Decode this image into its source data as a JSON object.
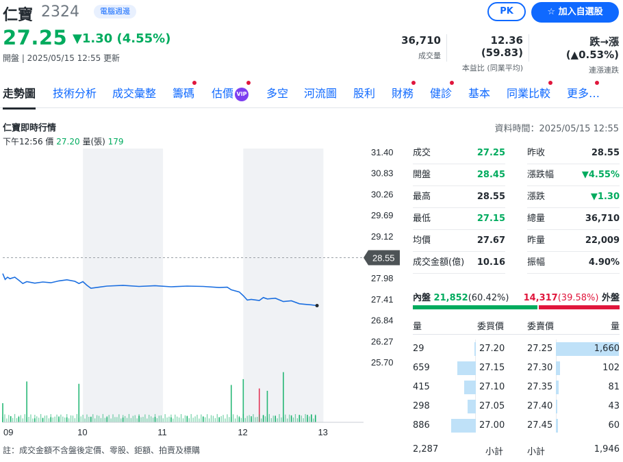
{
  "stock": {
    "name": "仁寶",
    "code": "2324",
    "badge": "電腦週邊",
    "price": "27.25",
    "change": "▼1.30 (4.55%)",
    "meta": "開盤 | 2025/05/15 12:55 更新"
  },
  "buttons": {
    "pk": "PK",
    "watchlist": "☆ 加入自選股"
  },
  "stats": [
    {
      "value": "36,710",
      "label": "成交量"
    },
    {
      "value": "12.36 (59.83)",
      "label": "本益比 (同業平均)"
    },
    {
      "value_prefix": "跌→漲",
      "value_suffix": "(▲0.53%)",
      "label": "連漲連跌"
    }
  ],
  "tabs": [
    "走勢圖",
    "技術分析",
    "成交彙整",
    "籌碼",
    "估價",
    "多空",
    "河流圖",
    "股利",
    "財務",
    "健診",
    "基本",
    "同業比較",
    "更多…"
  ],
  "vip_label": "VIP",
  "section": {
    "title": "仁寶即時行情",
    "data_time": "資料時間：2025/05/15 12:55",
    "tick_time": "下午12:56",
    "tick_price_label": "價",
    "tick_price": "27.20",
    "tick_vol_label": "量(張)",
    "tick_vol": "179"
  },
  "chart_data": {
    "type": "line",
    "x_ticks": [
      "09",
      "10",
      "11",
      "12",
      "13"
    ],
    "y_ticks": [
      "31.40",
      "30.83",
      "30.26",
      "29.69",
      "29.12",
      "28.55",
      "27.98",
      "27.41",
      "26.84",
      "26.27",
      "25.70"
    ],
    "ylim": [
      25.7,
      31.4
    ],
    "reference_label": "28.55",
    "reference": 28.55,
    "price_series": [
      [
        9.0,
        28.12
      ],
      [
        9.03,
        27.96
      ],
      [
        9.06,
        28.02
      ],
      [
        9.09,
        27.98
      ],
      [
        9.15,
        28.02
      ],
      [
        9.2,
        27.94
      ],
      [
        9.25,
        27.85
      ],
      [
        9.3,
        27.9
      ],
      [
        9.4,
        27.86
      ],
      [
        9.5,
        27.89
      ],
      [
        9.6,
        27.87
      ],
      [
        9.7,
        27.92
      ],
      [
        9.8,
        27.95
      ],
      [
        9.9,
        27.91
      ],
      [
        9.95,
        27.85
      ],
      [
        10.0,
        27.9
      ],
      [
        10.05,
        27.8
      ],
      [
        10.1,
        27.72
      ],
      [
        10.2,
        27.75
      ],
      [
        10.3,
        27.78
      ],
      [
        10.5,
        27.8
      ],
      [
        10.7,
        27.77
      ],
      [
        10.9,
        27.79
      ],
      [
        11.1,
        27.76
      ],
      [
        11.3,
        27.78
      ],
      [
        11.5,
        27.77
      ],
      [
        11.7,
        27.74
      ],
      [
        11.8,
        27.75
      ],
      [
        11.85,
        27.68
      ],
      [
        11.95,
        27.62
      ],
      [
        12.0,
        27.52
      ],
      [
        12.05,
        27.4
      ],
      [
        12.1,
        27.42
      ],
      [
        12.2,
        27.39
      ],
      [
        12.25,
        27.47
      ],
      [
        12.3,
        27.43
      ],
      [
        12.4,
        27.45
      ],
      [
        12.5,
        27.36
      ],
      [
        12.6,
        27.38
      ],
      [
        12.7,
        27.3
      ],
      [
        12.8,
        27.28
      ],
      [
        12.85,
        27.27
      ],
      [
        12.92,
        27.25
      ]
    ],
    "volume_bars": [
      [
        9.0,
        820
      ],
      [
        9.1,
        260
      ],
      [
        9.2,
        230
      ],
      [
        9.3,
        1750
      ],
      [
        9.4,
        170
      ],
      [
        9.5,
        190
      ],
      [
        9.6,
        220
      ],
      [
        9.7,
        250
      ],
      [
        9.8,
        210
      ],
      [
        9.95,
        1650
      ],
      [
        10.1,
        240
      ],
      [
        10.3,
        220
      ],
      [
        10.5,
        200
      ],
      [
        10.7,
        280
      ],
      [
        10.9,
        230
      ],
      [
        11.1,
        210
      ],
      [
        11.3,
        260
      ],
      [
        11.5,
        250
      ],
      [
        11.7,
        220
      ],
      [
        11.85,
        1600
      ],
      [
        11.95,
        220
      ],
      [
        12.0,
        1850
      ],
      [
        12.1,
        260
      ],
      [
        12.2,
        1450
      ],
      [
        12.25,
        300
      ],
      [
        12.3,
        1350
      ],
      [
        12.4,
        270
      ],
      [
        12.5,
        2150
      ],
      [
        12.6,
        300
      ],
      [
        12.7,
        320
      ],
      [
        12.8,
        320
      ],
      [
        12.85,
        340
      ],
      [
        12.9,
        300
      ]
    ]
  },
  "quote": {
    "left": [
      {
        "label": "成交",
        "value": "27.25",
        "color": "g"
      },
      {
        "label": "開盤",
        "value": "28.45",
        "color": "g"
      },
      {
        "label": "最高",
        "value": "28.55",
        "color": ""
      },
      {
        "label": "最低",
        "value": "27.15",
        "color": "g"
      },
      {
        "label": "均價",
        "value": "27.67",
        "color": ""
      },
      {
        "label": "成交金額(億)",
        "value": "10.16",
        "color": ""
      }
    ],
    "right": [
      {
        "label": "昨收",
        "value": "28.55",
        "color": ""
      },
      {
        "label": "漲跌幅",
        "value": "▼4.55%",
        "color": "g"
      },
      {
        "label": "漲跌",
        "value": "▼1.30",
        "color": "g"
      },
      {
        "label": "總量",
        "value": "36,710",
        "color": ""
      },
      {
        "label": "昨量",
        "value": "22,009",
        "color": ""
      },
      {
        "label": "振幅",
        "value": "4.90%",
        "color": ""
      }
    ]
  },
  "inout": {
    "inner_label": "內盤",
    "inner_value": "21,852",
    "inner_pct": "(60.42%)",
    "inner_fraction": 0.6042,
    "outer_value": "14,317",
    "outer_pct": "(39.58%)",
    "outer_label": "外盤"
  },
  "orderbook": {
    "h_qty": "量",
    "h_bid": "委買價",
    "h_ask": "委賣價",
    "bids": [
      {
        "qty": "29",
        "price": "27.20",
        "n": 29
      },
      {
        "qty": "659",
        "price": "27.15",
        "n": 659
      },
      {
        "qty": "415",
        "price": "27.10",
        "n": 415
      },
      {
        "qty": "298",
        "price": "27.05",
        "n": 298
      },
      {
        "qty": "886",
        "price": "27.00",
        "n": 886
      }
    ],
    "asks": [
      {
        "price": "27.25",
        "qty": "1,660",
        "n": 1660
      },
      {
        "price": "27.30",
        "qty": "102",
        "n": 102
      },
      {
        "price": "27.35",
        "qty": "81",
        "n": 81
      },
      {
        "price": "27.40",
        "qty": "43",
        "n": 43
      },
      {
        "price": "27.45",
        "qty": "60",
        "n": 60
      }
    ],
    "bid_total": "2,287",
    "subtotal_label": "小計",
    "ask_total": "1,946"
  },
  "note": "註：成交金額不含盤後定價、零股、鉅額、拍賣及標購"
}
